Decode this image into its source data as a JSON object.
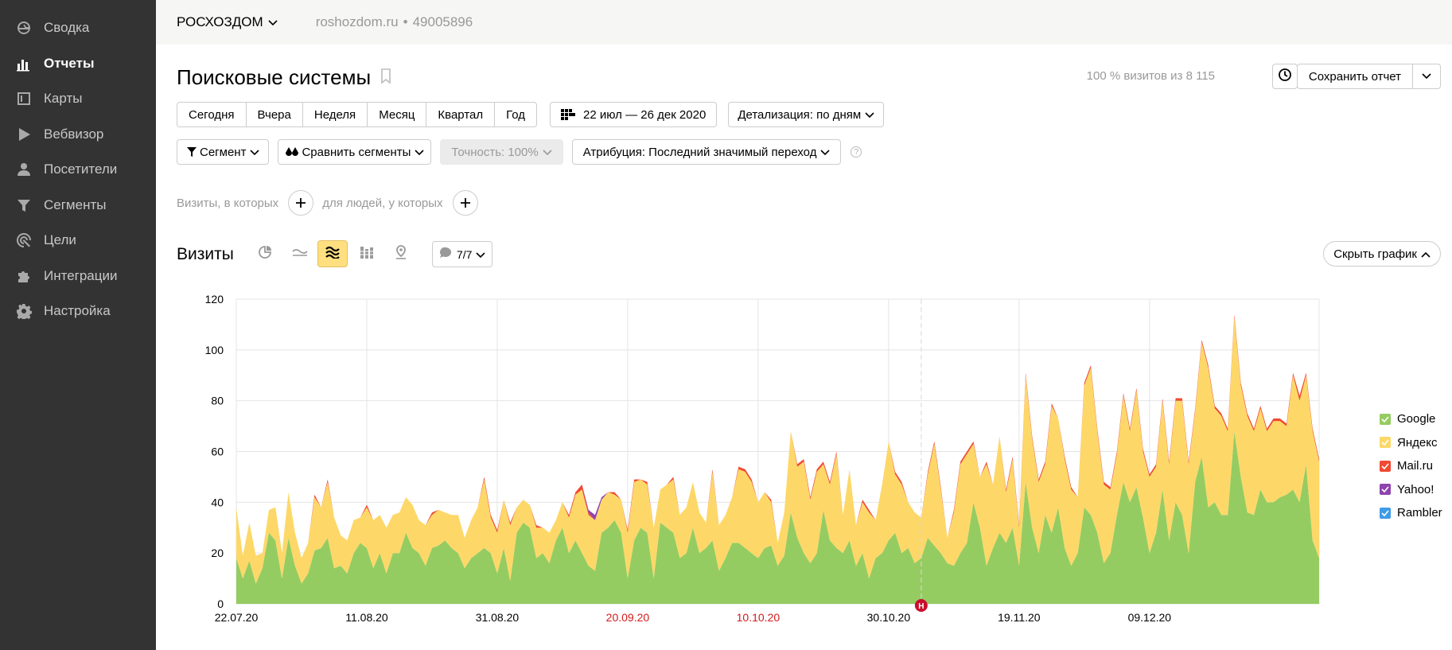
{
  "sidebar": {
    "items": [
      {
        "label": "Сводка",
        "icon": "gauge-icon"
      },
      {
        "label": "Отчеты",
        "icon": "bar-chart-icon",
        "active": true
      },
      {
        "label": "Карты",
        "icon": "map-icon"
      },
      {
        "label": "Вебвизор",
        "icon": "play-icon"
      },
      {
        "label": "Посетители",
        "icon": "user-icon"
      },
      {
        "label": "Сегменты",
        "icon": "funnel-icon"
      },
      {
        "label": "Цели",
        "icon": "target-icon"
      },
      {
        "label": "Интеграции",
        "icon": "puzzle-icon"
      },
      {
        "label": "Настройка",
        "icon": "gear-icon"
      }
    ]
  },
  "topbar": {
    "counter_name": "РОСХОЗДОМ",
    "site": "roshozdom.ru",
    "counter_id": "49005896"
  },
  "header": {
    "title": "Поисковые системы",
    "visits_share": "100 % визитов из 8 115",
    "save_label": "Сохранить отчет"
  },
  "periods": [
    "Сегодня",
    "Вчера",
    "Неделя",
    "Месяц",
    "Квартал",
    "Год"
  ],
  "date_range": "22 июл — 26 дек 2020",
  "detail": "Детализация: по дням",
  "segment_label": "Сегмент",
  "compare_label": "Сравнить сегменты",
  "accuracy_label": "Точность: 100%",
  "attribution_label": "Атрибуция: Последний значимый переход",
  "help": "?",
  "filters": {
    "visits_text": "Визиты, в которых",
    "people_text": "для людей, у которых"
  },
  "chart_header": {
    "title": "Визиты",
    "notes_count": "7/7",
    "hide_label": "Скрыть график"
  },
  "colors": {
    "google": "#95cc62",
    "yandex": "#fdd868",
    "mailru": "#f04a32",
    "yahoo": "#8e44ad",
    "rambler": "#3f9be6",
    "red_tick": "#d11a1a"
  },
  "chart_data": {
    "type": "area",
    "stacked": true,
    "ylim": [
      0,
      120
    ],
    "yticks": [
      0,
      20,
      40,
      60,
      80,
      100,
      120
    ],
    "xtick_labels": [
      {
        "label": "22.07.20",
        "day": 0,
        "red": false
      },
      {
        "label": "11.08.20",
        "day": 20,
        "red": false
      },
      {
        "label": "31.08.20",
        "day": 40,
        "red": false
      },
      {
        "label": "20.09.20",
        "day": 60,
        "red": true
      },
      {
        "label": "10.10.20",
        "day": 80,
        "red": true
      },
      {
        "label": "30.10.20",
        "day": 100,
        "red": false
      },
      {
        "label": "19.11.20",
        "day": 120,
        "red": false
      },
      {
        "label": "09.12.20",
        "day": 140,
        "red": false
      }
    ],
    "annotation": {
      "label": "Н",
      "day": 105
    },
    "legend": [
      "Google",
      "Яндекс",
      "Mail.ru",
      "Yahoo!",
      "Rambler"
    ],
    "series": [
      {
        "name": "Google",
        "values": [
          18,
          10,
          17,
          8,
          14,
          28,
          25,
          10,
          26,
          15,
          8,
          12,
          21,
          22,
          26,
          14,
          15,
          12,
          20,
          24,
          22,
          14,
          20,
          12,
          20,
          20,
          28,
          22,
          20,
          15,
          22,
          23,
          25,
          22,
          20,
          14,
          18,
          20,
          22,
          20,
          12,
          22,
          9,
          28,
          32,
          30,
          18,
          20,
          16,
          25,
          30,
          20,
          25,
          20,
          15,
          13,
          28,
          30,
          33,
          28,
          10,
          25,
          30,
          28,
          10,
          32,
          30,
          28,
          18,
          20,
          30,
          20,
          22,
          25,
          13,
          18,
          24,
          24,
          22,
          20,
          18,
          22,
          23,
          15,
          19,
          36,
          26,
          20,
          16,
          20,
          37,
          25,
          22,
          20,
          25,
          15,
          20,
          10,
          18,
          20,
          25,
          28,
          20,
          22,
          16,
          18,
          26,
          23,
          20,
          16,
          15,
          20,
          24,
          40,
          30,
          15,
          22,
          28,
          24,
          30,
          15,
          48,
          30,
          20,
          35,
          28,
          38,
          22,
          15,
          20,
          38,
          35,
          28,
          16,
          20,
          35,
          48,
          40,
          46,
          34,
          20,
          28,
          45,
          25,
          40,
          35,
          20,
          48,
          58,
          38,
          40,
          35,
          35,
          68,
          50,
          36,
          35,
          45,
          40,
          40,
          42,
          43,
          45,
          40,
          55,
          25,
          18
        ]
      },
      {
        "name": "Яндекс",
        "values": [
          20,
          9,
          15,
          11,
          6,
          9,
          13,
          10,
          18,
          13,
          10,
          12,
          21,
          16,
          22,
          20,
          12,
          13,
          13,
          10,
          16,
          19,
          15,
          18,
          15,
          16,
          14,
          17,
          13,
          16,
          13,
          14,
          11,
          13,
          15,
          12,
          15,
          18,
          27,
          14,
          16,
          19,
          22,
          10,
          9,
          9,
          12,
          10,
          12,
          8,
          10,
          14,
          18,
          25,
          20,
          20,
          13,
          14,
          10,
          13,
          18,
          23,
          19,
          19,
          20,
          13,
          17,
          21,
          17,
          18,
          18,
          16,
          10,
          27,
          18,
          17,
          18,
          29,
          30,
          28,
          22,
          22,
          17,
          9,
          17,
          32,
          28,
          36,
          25,
          32,
          18,
          22,
          37,
          15,
          28,
          16,
          20,
          26,
          15,
          27,
          39,
          23,
          27,
          18,
          20,
          16,
          25,
          40,
          25,
          10,
          21,
          35,
          35,
          23,
          20,
          40,
          25,
          38,
          20,
          27,
          15,
          42,
          35,
          28,
          20,
          50,
          35,
          35,
          30,
          22,
          48,
          58,
          40,
          31,
          25,
          24,
          34,
          28,
          38,
          26,
          30,
          26,
          35,
          30,
          40,
          45,
          35,
          28,
          45,
          55,
          37,
          39,
          33,
          45,
          36,
          38,
          33,
          32,
          28,
          32,
          30,
          27,
          45,
          40,
          35,
          43,
          38
        ]
      },
      {
        "name": "Mail.ru",
        "values": [
          0,
          0,
          0,
          0,
          0,
          0,
          0,
          0,
          0,
          0,
          0,
          0,
          1,
          0,
          1,
          0,
          0,
          0,
          0,
          0,
          1,
          0,
          0,
          0,
          0,
          0,
          0,
          0,
          0,
          0,
          1,
          0,
          0,
          0,
          0,
          0,
          0,
          0,
          1,
          1,
          1,
          0,
          1,
          0,
          0,
          0,
          1,
          0,
          0,
          0,
          0,
          1,
          1,
          2,
          1,
          0,
          0,
          0,
          1,
          0,
          1,
          1,
          0,
          1,
          0,
          0,
          0,
          1,
          0,
          0,
          0,
          0,
          0,
          1,
          0,
          0,
          0,
          1,
          1,
          1,
          0,
          0,
          1,
          0,
          0,
          0,
          1,
          1,
          1,
          1,
          1,
          1,
          1,
          0,
          0,
          0,
          1,
          1,
          0,
          0,
          0,
          1,
          1,
          0,
          0,
          0,
          1,
          1,
          1,
          0,
          1,
          1,
          1,
          1,
          0,
          1,
          0,
          0,
          1,
          1,
          1,
          1,
          1,
          1,
          1,
          1,
          0,
          1,
          1,
          0,
          1,
          1,
          1,
          1,
          1,
          1,
          1,
          1,
          1,
          1,
          1,
          1,
          1,
          1,
          1,
          1,
          1,
          1,
          1,
          1,
          1,
          1,
          1,
          1,
          1,
          1,
          1,
          1,
          1,
          1,
          1,
          1,
          1,
          2,
          1,
          1,
          1
        ]
      },
      {
        "name": "Yahoo!",
        "values": [
          0,
          0,
          0,
          0,
          0,
          0,
          0,
          0,
          0,
          0,
          0,
          0,
          0,
          0,
          0,
          0,
          0,
          0,
          0,
          0,
          0,
          0,
          0,
          0,
          0,
          0,
          0,
          0,
          0,
          0,
          0,
          0,
          0,
          0,
          0,
          0,
          0,
          0,
          0,
          0,
          0,
          0,
          0,
          0,
          0,
          0,
          0,
          0,
          0,
          0,
          0,
          0,
          0,
          0,
          1,
          2,
          1,
          0,
          0,
          0,
          0,
          0,
          0,
          0,
          0,
          0,
          0,
          0,
          0,
          0,
          0,
          0,
          0,
          0,
          0,
          0,
          0,
          0,
          0,
          0,
          0,
          0,
          0,
          0,
          0,
          0,
          0,
          0,
          0,
          0,
          0,
          0,
          0,
          0,
          0,
          0,
          0,
          0,
          0,
          0,
          0,
          0,
          0,
          0,
          0,
          0,
          0,
          0,
          0,
          0,
          0,
          0,
          0,
          0,
          0,
          0,
          0,
          0,
          0,
          0,
          0,
          0,
          0,
          0,
          0,
          0,
          0,
          0,
          0,
          0,
          0,
          0,
          0,
          0,
          0,
          0,
          0,
          0,
          0,
          0,
          0,
          0,
          0,
          0,
          0,
          0,
          0,
          0,
          0,
          0,
          0,
          0,
          0,
          0,
          0,
          0,
          0,
          0,
          0,
          0,
          0,
          0,
          0,
          0,
          0,
          0,
          0
        ]
      },
      {
        "name": "Rambler",
        "values": [
          0,
          0,
          0,
          0,
          0,
          0,
          0,
          0,
          0,
          0,
          0,
          0,
          0,
          0,
          0,
          0,
          0,
          0,
          0,
          0,
          0,
          0,
          0,
          0,
          0,
          0,
          0,
          0,
          0,
          0,
          0,
          0,
          0,
          0,
          0,
          0,
          0,
          0,
          0,
          0,
          0,
          0,
          0,
          0,
          0,
          0,
          0,
          0,
          0,
          0,
          0,
          0,
          0,
          0,
          0,
          0,
          0,
          0,
          0,
          0,
          0,
          0,
          0,
          0,
          0,
          0,
          0,
          0,
          0,
          0,
          0,
          0,
          0,
          0,
          0,
          0,
          0,
          0,
          0,
          0,
          0,
          0,
          0,
          0,
          0,
          0,
          0,
          0,
          0,
          0,
          0,
          0,
          0,
          0,
          0,
          0,
          0,
          0,
          0,
          0,
          0,
          0,
          0,
          0,
          0,
          0,
          0,
          0,
          0,
          0,
          0,
          0,
          0,
          0,
          0,
          0,
          0,
          0,
          0,
          0,
          0,
          0,
          0,
          0,
          0,
          0,
          0,
          0,
          0,
          0,
          0,
          0,
          0,
          0,
          0,
          0,
          0,
          0,
          0,
          0,
          0,
          0,
          0,
          0,
          0,
          0,
          0,
          0,
          0,
          0,
          0,
          0,
          0,
          0,
          0,
          0,
          0,
          0,
          0,
          0,
          0,
          0,
          0,
          0,
          0,
          0,
          0
        ]
      }
    ]
  }
}
